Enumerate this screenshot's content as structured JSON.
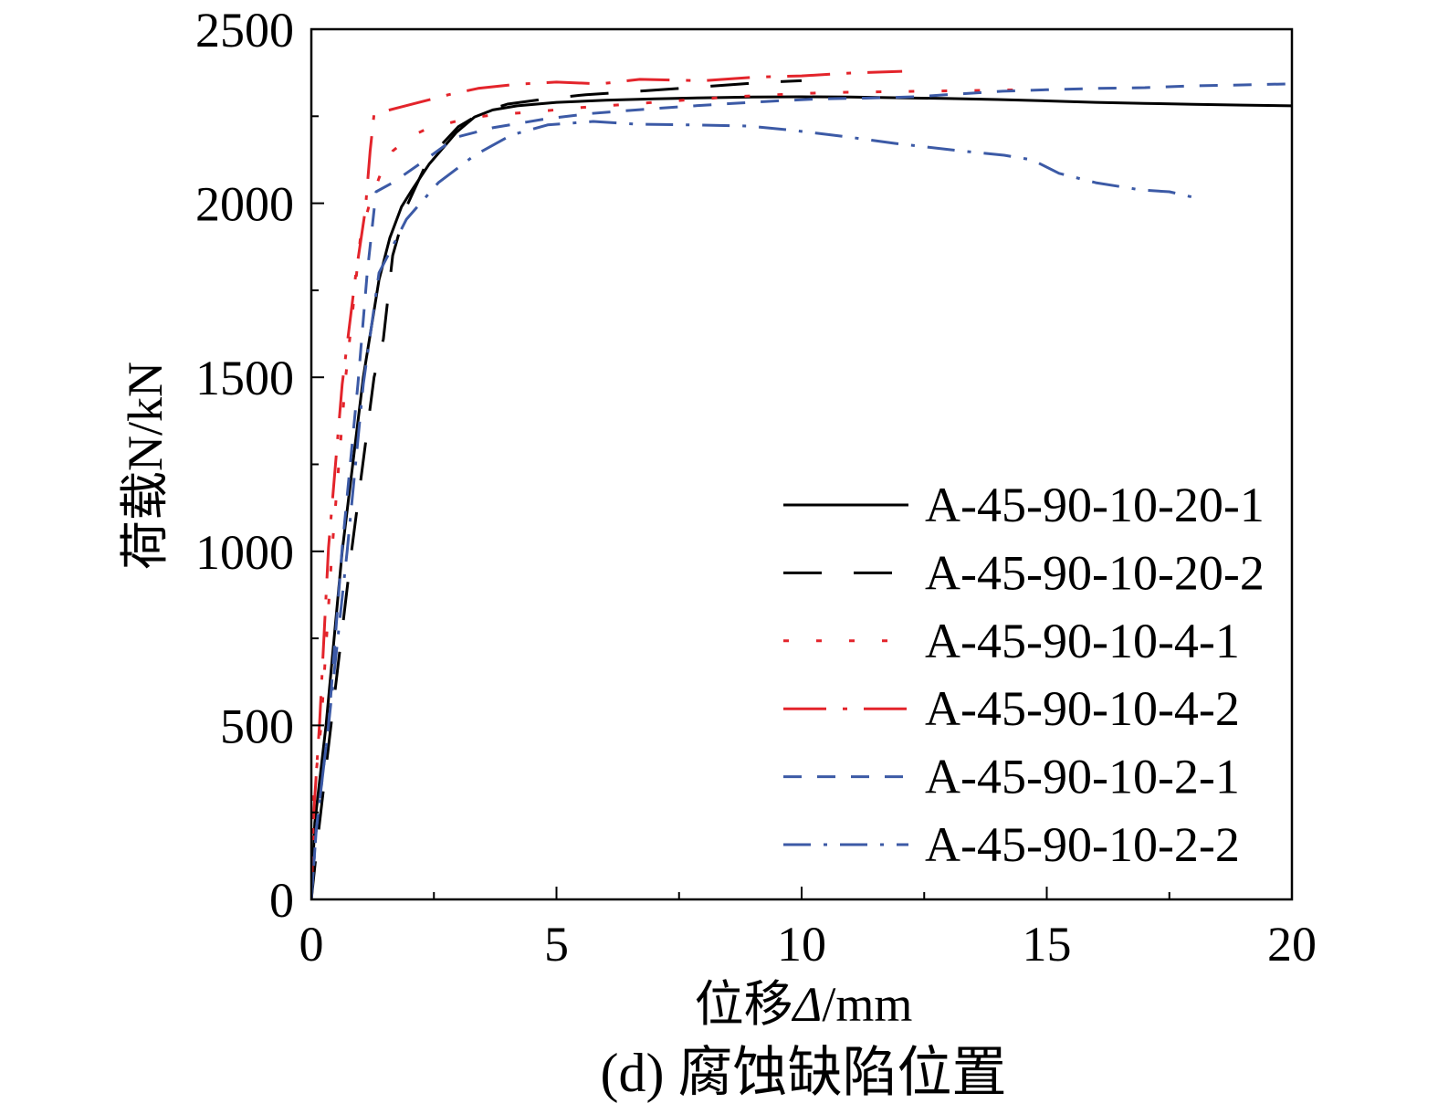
{
  "chart_data": {
    "type": "line",
    "caption": "(d) 腐蚀缺陷位置",
    "xlabel": "位移Δ/mm",
    "ylabel": "荷载N/kN",
    "xlim": [
      0,
      20
    ],
    "ylim": [
      0,
      2500
    ],
    "xticks": [
      0,
      5,
      10,
      15,
      20
    ],
    "yticks": [
      0,
      500,
      1000,
      1500,
      2000,
      2500
    ],
    "grid": false,
    "legend_position": "lower-right",
    "series": [
      {
        "name": "A-45-90-10-20-1",
        "color": "#000000",
        "line_style": "solid",
        "x": [
          0,
          0.07,
          0.3,
          0.63,
          1.06,
          1.38,
          1.6,
          1.84,
          2.03,
          2.4,
          2.96,
          3.33,
          3.7,
          4.2,
          5.0,
          6.0,
          7.0,
          8.0,
          9.0,
          10.0,
          11.0,
          12.0,
          13.0,
          14.0,
          15.0,
          16.0,
          17.0,
          18.0,
          19.0,
          20.0
        ],
        "y": [
          0,
          220,
          500,
          1000,
          1500,
          1780,
          1900,
          1990,
          2033,
          2112,
          2204,
          2248,
          2268,
          2280,
          2290,
          2296,
          2300,
          2303,
          2305,
          2306,
          2305,
          2303,
          2301,
          2298,
          2294,
          2290,
          2287,
          2284,
          2282,
          2280
        ]
      },
      {
        "name": "A-45-90-10-20-2",
        "color": "#000000",
        "line_style": "long-dash",
        "x": [
          0,
          0.15,
          0.4,
          0.82,
          1.28,
          1.47,
          1.66,
          1.94,
          2.3,
          2.6,
          3.0,
          3.5,
          4.0,
          4.8,
          5.6,
          6.5,
          7.5,
          8.5,
          9.3,
          10.0
        ],
        "y": [
          0,
          200,
          500,
          1000,
          1500,
          1610,
          1850,
          1990,
          2100,
          2160,
          2220,
          2262,
          2285,
          2300,
          2312,
          2320,
          2330,
          2340,
          2348,
          2352
        ]
      },
      {
        "name": "A-45-90-10-4-1",
        "color": "#e3242b",
        "line_style": "dot",
        "x": [
          0,
          0.05,
          0.2,
          0.42,
          0.7,
          1.0,
          1.19,
          1.4,
          1.66,
          2.0,
          2.3,
          2.8,
          3.2,
          3.8,
          4.5,
          5.5,
          6.5,
          7.5,
          8.5,
          9.5,
          10.5,
          11.5,
          12.5,
          13.5,
          14.5
        ],
        "y": [
          0,
          300,
          500,
          1000,
          1500,
          1900,
          2000,
          2080,
          2150,
          2190,
          2210,
          2230,
          2245,
          2255,
          2262,
          2275,
          2285,
          2295,
          2305,
          2312,
          2318,
          2320,
          2322,
          2324,
          2326
        ]
      },
      {
        "name": "A-45-90-10-4-2",
        "color": "#e3242b",
        "line_style": "long-dash-dot",
        "x": [
          0,
          0.05,
          0.17,
          0.35,
          0.63,
          0.91,
          1.1,
          1.2,
          1.28,
          1.7,
          2.2,
          2.8,
          3.4,
          4.2,
          5.0,
          5.9,
          6.7,
          8.0,
          9.0,
          10.0,
          11.0,
          12.05
        ],
        "y": [
          0,
          250,
          510,
          1010,
          1480,
          1800,
          1980,
          2150,
          2256,
          2272,
          2290,
          2312,
          2330,
          2342,
          2348,
          2343,
          2356,
          2352,
          2362,
          2366,
          2374,
          2379
        ]
      },
      {
        "name": "A-45-90-10-2-1",
        "color": "#3c5aa6",
        "line_style": "dash",
        "x": [
          0,
          0.1,
          0.35,
          0.63,
          0.95,
          1.14,
          1.32,
          1.66,
          2.2,
          2.96,
          3.7,
          4.8,
          5.7,
          6.7,
          7.6,
          8.6,
          9.5,
          10.4,
          11.3,
          12.3,
          13.2,
          14.1,
          15.0,
          16.0,
          17.0,
          17.9,
          19.0,
          20.0
        ],
        "y": [
          0,
          200,
          500,
          1010,
          1480,
          1800,
          2033,
          2059,
          2112,
          2190,
          2217,
          2243,
          2258,
          2269,
          2278,
          2287,
          2294,
          2300,
          2302,
          2306,
          2314,
          2322,
          2326,
          2330,
          2332,
          2337,
          2340,
          2343
        ]
      },
      {
        "name": "A-45-90-10-2-2",
        "color": "#3c5aa6",
        "line_style": "dash-dot",
        "x": [
          0,
          0.1,
          0.35,
          0.73,
          1.06,
          1.38,
          1.94,
          2.59,
          3.33,
          4.08,
          4.82,
          5.75,
          6.68,
          7.8,
          8.92,
          9.85,
          10.97,
          11.9,
          13.2,
          14.13,
          14.7,
          15.25,
          16.0,
          16.93,
          17.5,
          18.14
        ],
        "y": [
          0,
          200,
          500,
          1000,
          1480,
          1800,
          1954,
          2059,
          2138,
          2196,
          2225,
          2235,
          2227,
          2225,
          2222,
          2209,
          2190,
          2172,
          2151,
          2138,
          2125,
          2086,
          2059,
          2038,
          2033,
          2012
        ]
      }
    ]
  }
}
